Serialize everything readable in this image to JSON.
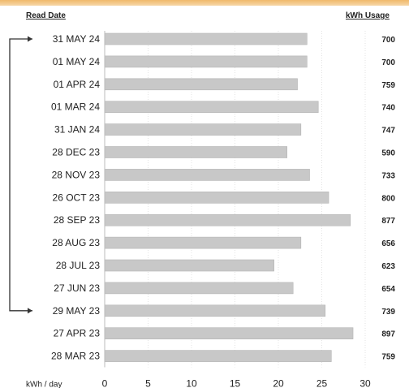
{
  "headers": {
    "left": "Read Date",
    "right": "kWh  Usage"
  },
  "chart_data": {
    "type": "bar",
    "orientation": "horizontal",
    "xlabel": "kWh / day",
    "xlim": [
      0,
      30
    ],
    "xticks": [
      0,
      5,
      10,
      15,
      20,
      25,
      30
    ],
    "bar_color": "#c8c8c8",
    "categories": [
      "31 MAY 24",
      "01 MAY 24",
      "01 APR 24",
      "01 MAR 24",
      "31 JAN 24",
      "28 DEC 23",
      "28 NOV 23",
      "26 OCT 23",
      "28 SEP 23",
      "28 AUG 23",
      "28 JUL 23",
      "27 JUN 23",
      "29 MAY 23",
      "27 APR 23",
      "28 MAR 23"
    ],
    "values": [
      23.3,
      23.3,
      22.2,
      24.6,
      22.6,
      21.0,
      23.6,
      25.8,
      28.3,
      22.6,
      19.5,
      21.7,
      25.4,
      28.6,
      26.1
    ],
    "usage": [
      "700",
      "700",
      "759",
      "740",
      "747",
      "590",
      "733",
      "800",
      "877",
      "656",
      "623",
      "654",
      "739",
      "897",
      "759"
    ],
    "bracket": {
      "from": "31 MAY 24",
      "to": "29 MAY 23"
    }
  }
}
